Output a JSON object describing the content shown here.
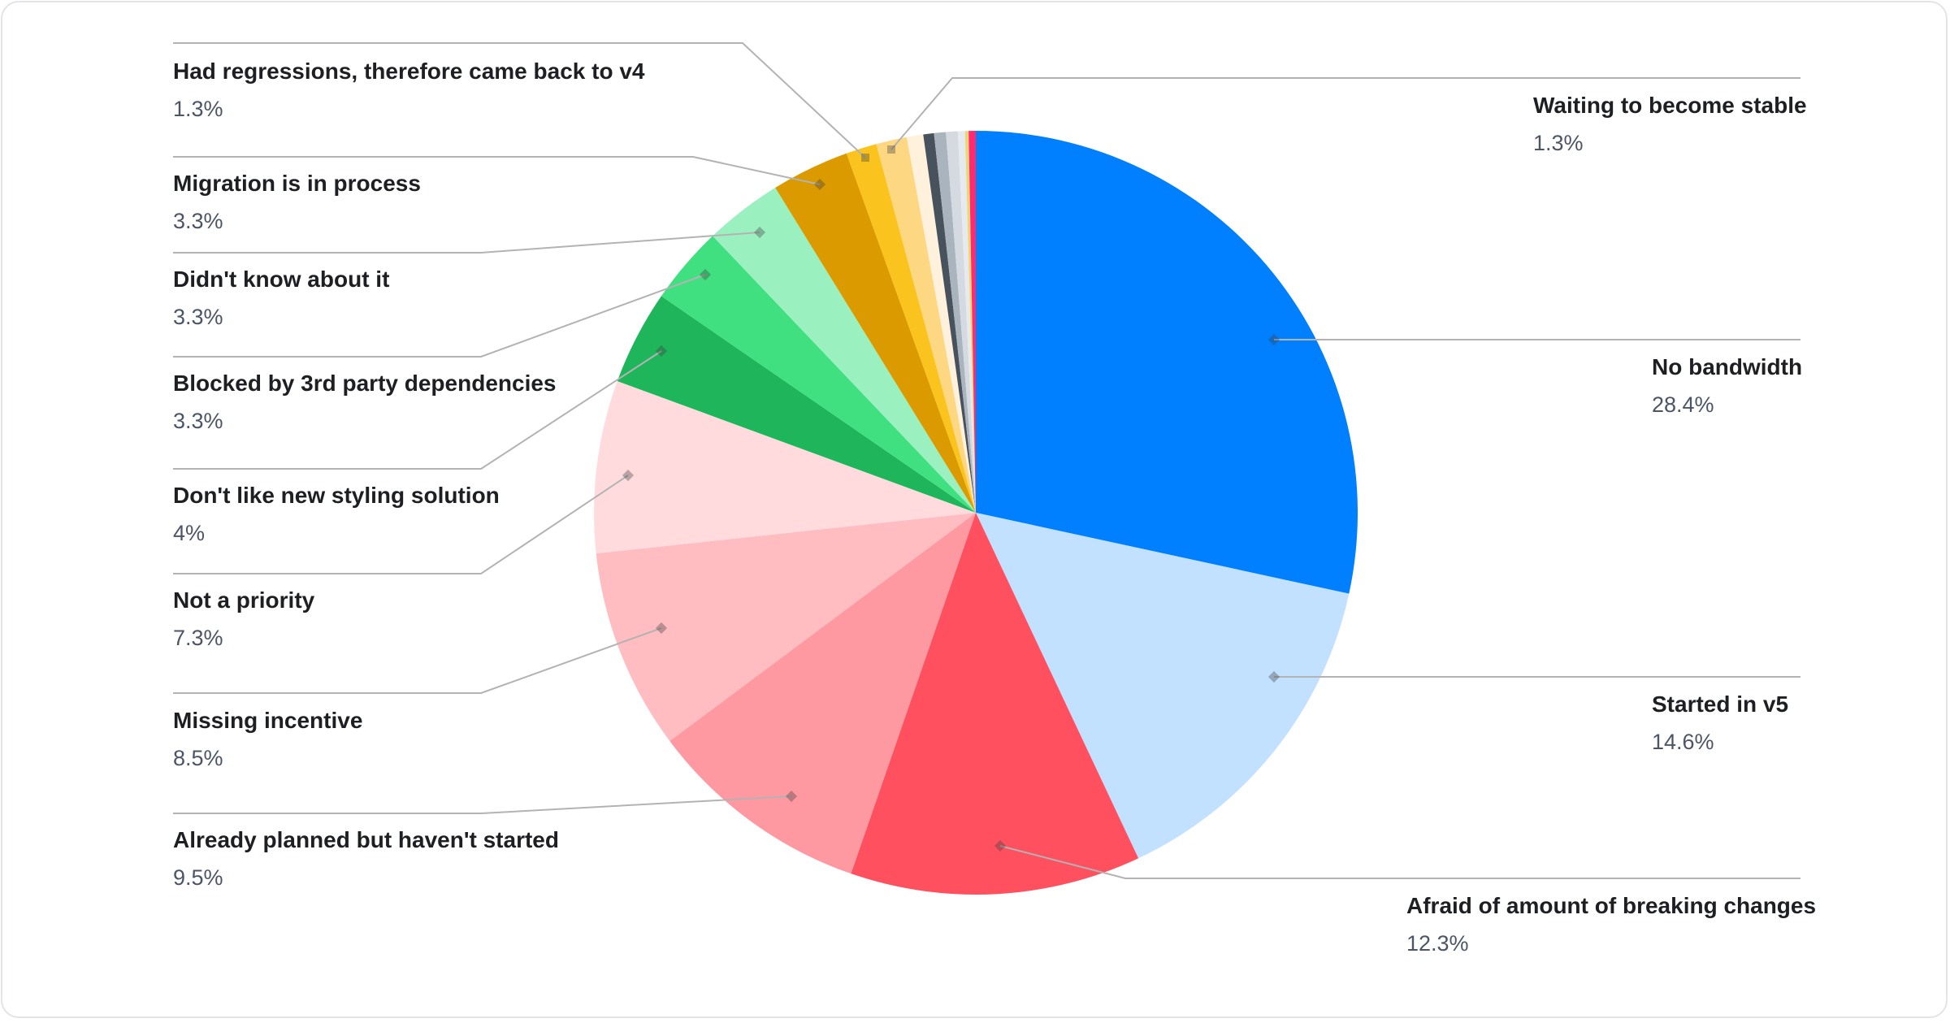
{
  "chart_data": {
    "type": "pie",
    "start_angle": "top, clockwise",
    "slices": [
      {
        "label": "No bandwidth",
        "value": 28.4,
        "value_label": "28.4%",
        "color": "#0080ff"
      },
      {
        "label": "Started in v5",
        "value": 14.6,
        "value_label": "14.6%",
        "color": "#c2e0ff"
      },
      {
        "label": "Afraid of amount of breaking changes",
        "value": 12.3,
        "value_label": "12.3%",
        "color": "#ff505f"
      },
      {
        "label": "Already planned but haven't started",
        "value": 9.5,
        "value_label": "9.5%",
        "color": "#ff99a1"
      },
      {
        "label": "Missing incentive",
        "value": 8.5,
        "value_label": "8.5%",
        "color": "#ffbcc1"
      },
      {
        "label": "Not a priority",
        "value": 7.3,
        "value_label": "7.3%",
        "color": "#ffdbde"
      },
      {
        "label": "Don't like new styling solution",
        "value": 4,
        "value_label": "4%",
        "color": "#1fb55a"
      },
      {
        "label": "Blocked by 3rd party dependencies",
        "value": 3.3,
        "value_label": "3.3%",
        "color": "#40e080"
      },
      {
        "label": "Didn't know about it",
        "value": 3.3,
        "value_label": "3.3%",
        "color": "#9bf0c0"
      },
      {
        "label": "Migration is in process",
        "value": 3.3,
        "value_label": "3.3%",
        "color": "#db9a00"
      },
      {
        "label": "Had regressions, therefore came back to v4",
        "value": 1.3,
        "value_label": "1.3%",
        "color": "#fbc31d"
      },
      {
        "label": "Waiting to become stable",
        "value": 1.3,
        "value_label": "1.3%",
        "color": "#fdd782"
      },
      {
        "label": "",
        "value": 0.7,
        "color": "#fff1dc"
      },
      {
        "label": "",
        "value": 0.45,
        "color": "#48525c"
      },
      {
        "label": "",
        "value": 0.5,
        "color": "#aab4bf"
      },
      {
        "label": "",
        "value": 0.5,
        "color": "#d5dae0"
      },
      {
        "label": "",
        "value": 0.3,
        "color": "#e6e9ed"
      },
      {
        "label": "",
        "value": 0.15,
        "color": "#e6d877"
      },
      {
        "label": "",
        "value": 0.3,
        "color": "#ff2a70"
      }
    ]
  }
}
